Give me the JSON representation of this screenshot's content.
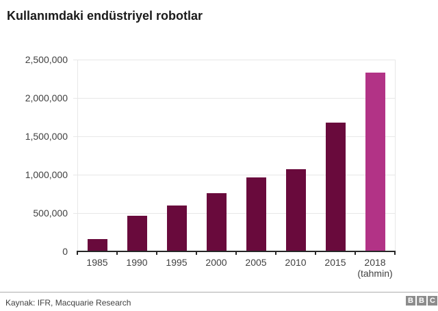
{
  "chart_data": {
    "type": "bar",
    "title": "Kullanımdaki endüstriyel robotlar",
    "categories": [
      "1985",
      "1990",
      "1995",
      "2000",
      "2005",
      "2010",
      "2015",
      "2018"
    ],
    "category_notes": [
      "",
      "",
      "",
      "",
      "",
      "",
      "",
      "(tahmin)"
    ],
    "values": [
      160000,
      460000,
      600000,
      760000,
      960000,
      1070000,
      1680000,
      2330000
    ],
    "ylim": [
      0,
      2500000
    ],
    "ytick_labels": [
      "2,500,000",
      "2,000,000",
      "1,500,000",
      "1,000,000",
      "500,000",
      "0"
    ],
    "grid": true,
    "legend": "none",
    "bar_color": "#690a3c",
    "highlight_color": "#b23386",
    "highlight_index": 7
  },
  "colors": {
    "title_text": "#1a1a1a",
    "axis_text": "#404040",
    "gridline": "#e7e7e7",
    "axis_line": "#262626",
    "divider": "#adadad",
    "logo_block": "#8c8c8c"
  },
  "footer": {
    "source": "Kaynak: IFR, Macquarie Research",
    "logo_letters": [
      "B",
      "B",
      "C"
    ]
  }
}
